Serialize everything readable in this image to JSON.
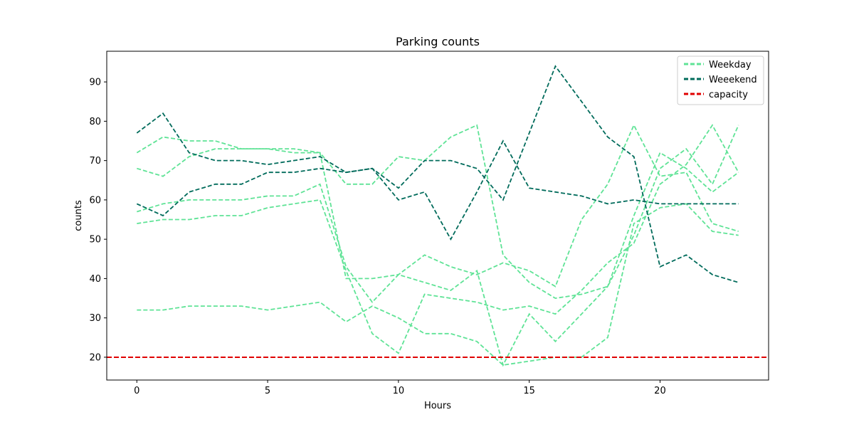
{
  "chart_data": {
    "type": "line",
    "title": "Parking counts",
    "xlabel": "Hours",
    "ylabel": "counts",
    "xlim": [
      -1.15,
      24.15
    ],
    "ylim": [
      14.2,
      97.8
    ],
    "xticks": [
      0,
      5,
      10,
      15,
      20
    ],
    "yticks": [
      20,
      30,
      40,
      50,
      60,
      70,
      80,
      90
    ],
    "grid": false,
    "legend_position": "top-right",
    "colors": {
      "weekday": "#5fe396",
      "weekend": "#006b5b",
      "capacity": "#e00000"
    },
    "legend": [
      {
        "label": "Weekday",
        "color": "#5fe396"
      },
      {
        "label": "Weeekend",
        "color": "#006b5b"
      },
      {
        "label": "capacity",
        "color": "#e00000"
      }
    ],
    "x": [
      0,
      1,
      2,
      3,
      4,
      5,
      6,
      7,
      8,
      9,
      10,
      11,
      12,
      13,
      14,
      15,
      16,
      17,
      18,
      19,
      20,
      21,
      22,
      23
    ],
    "weekday_series": [
      {
        "values": [
          72,
          76,
          75,
          75,
          73,
          73,
          73,
          72,
          64,
          64,
          71,
          70,
          76,
          79,
          46,
          39,
          35,
          36,
          38,
          51,
          68,
          73,
          64,
          79
        ]
      },
      {
        "values": [
          68,
          66,
          71,
          73,
          73,
          73,
          72,
          72,
          40,
          40,
          41,
          46,
          43,
          41,
          44,
          42,
          38,
          55,
          64,
          79,
          66,
          67,
          54,
          52
        ]
      },
      {
        "values": [
          57,
          59,
          60,
          60,
          60,
          61,
          61,
          64,
          43,
          34,
          41,
          39,
          37,
          42,
          18,
          31,
          24,
          31,
          38,
          56,
          72,
          68,
          62,
          67
        ]
      },
      {
        "values": [
          54,
          55,
          55,
          56,
          56,
          58,
          59,
          60,
          42,
          26,
          21,
          36,
          35,
          34,
          32,
          33,
          31,
          37,
          44,
          49,
          64,
          69,
          79,
          67
        ]
      },
      {
        "values": [
          32,
          32,
          33,
          33,
          33,
          32,
          33,
          34,
          29,
          33,
          30,
          26,
          26,
          24,
          18,
          19,
          20,
          20,
          25,
          54,
          58,
          59,
          52,
          51
        ]
      }
    ],
    "weekend_series": [
      {
        "values": [
          77,
          82,
          72,
          70,
          70,
          69,
          70,
          71,
          67,
          68,
          60,
          62,
          50,
          62,
          75,
          63,
          62,
          61,
          59,
          60,
          59,
          59,
          59,
          59
        ]
      },
      {
        "values": [
          59,
          56,
          62,
          64,
          64,
          67,
          67,
          68,
          67,
          68,
          63,
          70,
          70,
          68,
          60,
          77,
          94,
          85,
          76,
          71,
          43,
          46,
          41,
          39
        ]
      }
    ],
    "capacity": 20
  }
}
